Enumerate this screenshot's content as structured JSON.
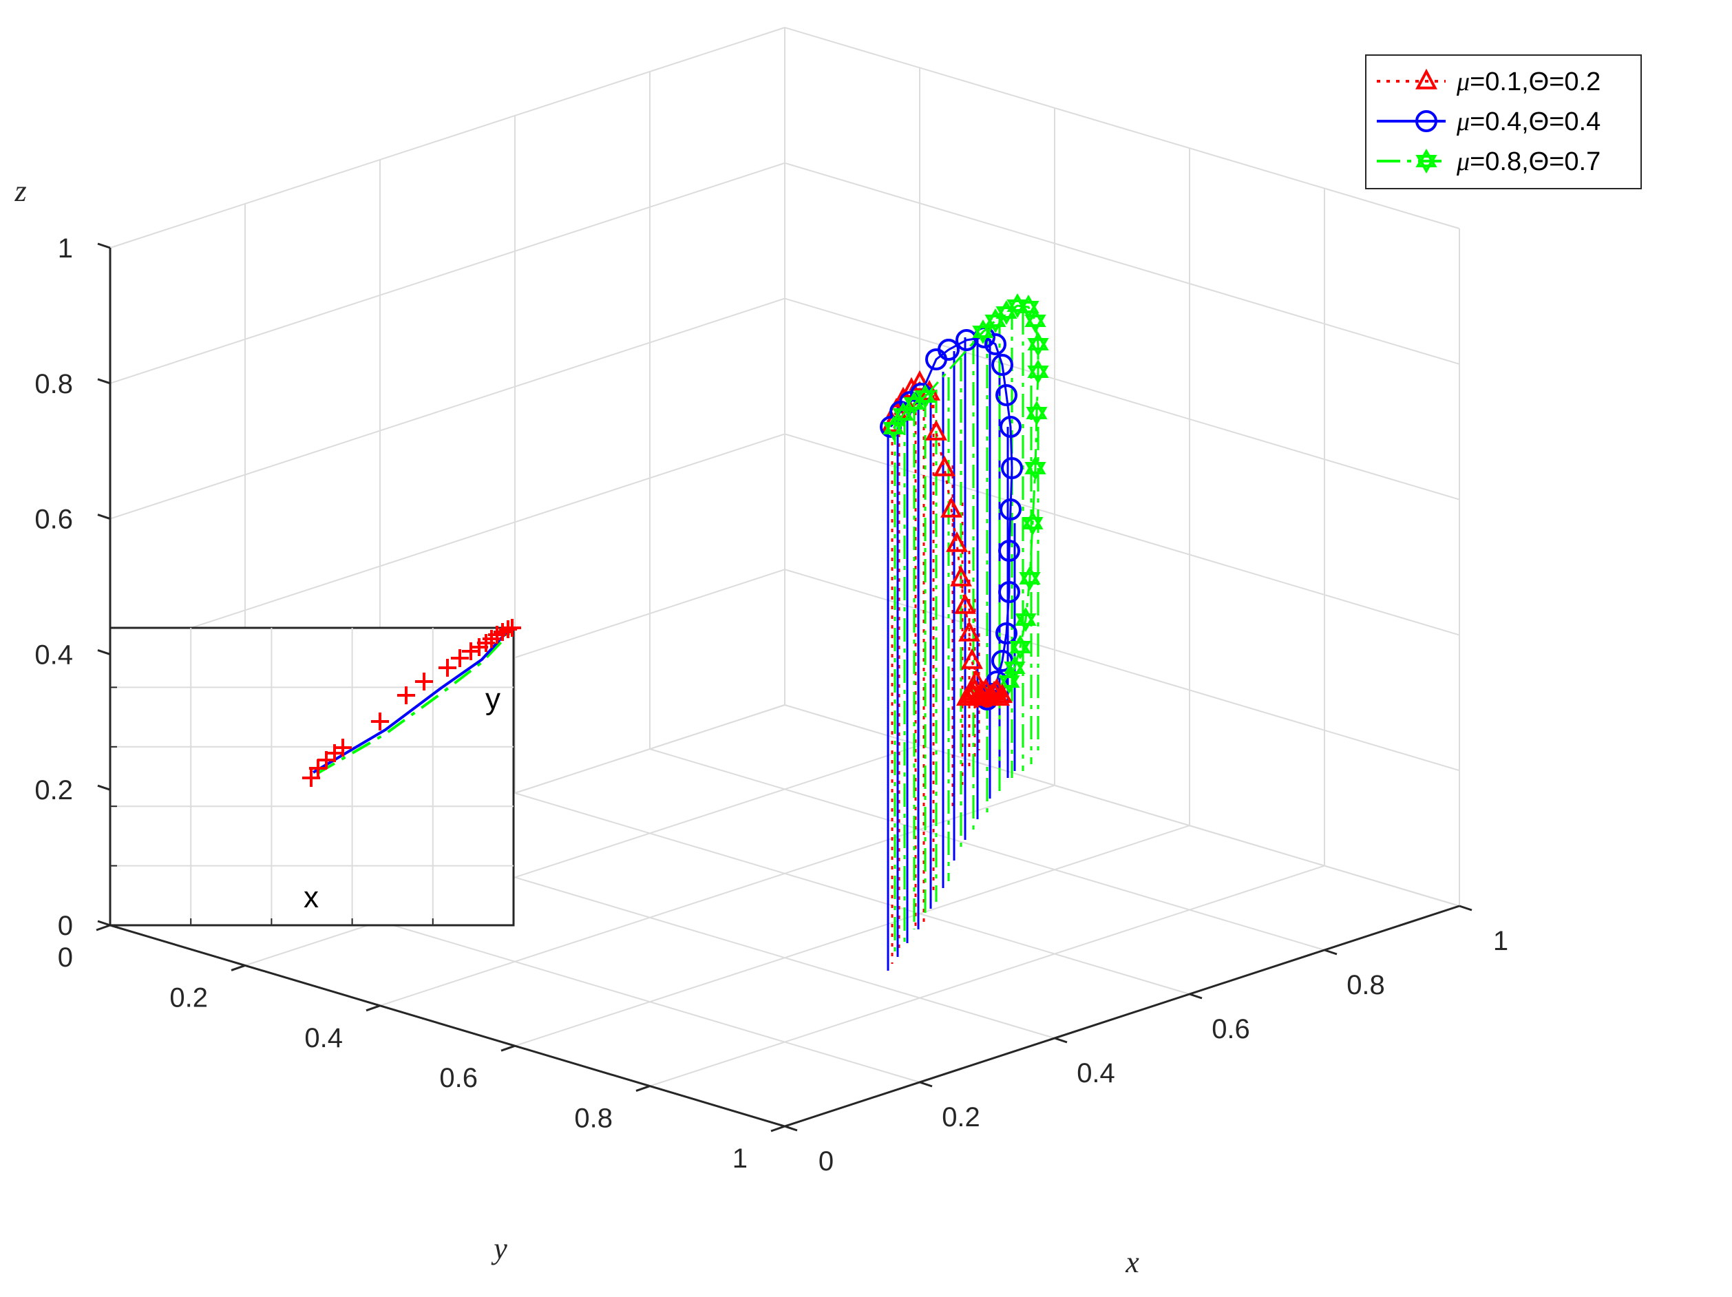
{
  "chart_data": {
    "type": "line3d",
    "axes": {
      "x": {
        "label": "x",
        "ticks": [
          "0",
          "0.2",
          "0.4",
          "0.6",
          "0.8",
          "1"
        ],
        "range": [
          0,
          1
        ]
      },
      "y": {
        "label": "y",
        "ticks": [
          "0",
          "0.2",
          "0.4",
          "0.6",
          "0.8",
          "1"
        ],
        "range": [
          0,
          1
        ]
      },
      "z": {
        "label": "z",
        "ticks": [
          "0",
          "0.2",
          "0.4",
          "0.6",
          "0.8",
          "1"
        ],
        "range": [
          0,
          1
        ]
      }
    },
    "grid": true,
    "legend_position": "top-right",
    "series": [
      {
        "name_math": "μ",
        "name_rest": "=0.1,",
        "name_theta": "Θ",
        "name_end": "=0.2",
        "color": "#ff0000",
        "marker": "triangle",
        "line_style": "dotted"
      },
      {
        "name_math": "μ",
        "name_rest": "=0.4,",
        "name_theta": "Θ",
        "name_end": "=0.4",
        "color": "#0000ff",
        "marker": "circle",
        "line_style": "solid"
      },
      {
        "name_math": "μ",
        "name_rest": "=0.8,",
        "name_theta": "Θ",
        "name_end": "=0.7",
        "color": "#00ff00",
        "marker": "hexagram",
        "line_style": "dashdot"
      }
    ],
    "inset": {
      "x_label": "x",
      "y_label": "y"
    }
  }
}
